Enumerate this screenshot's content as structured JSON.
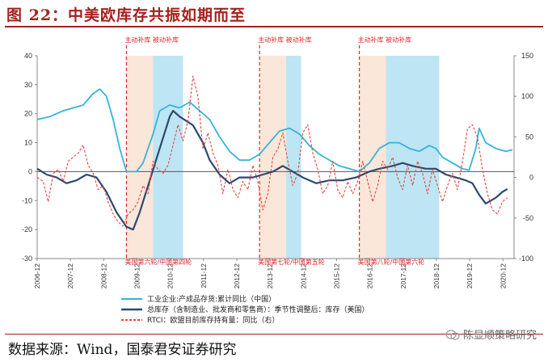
{
  "title": "图 22：中美欧库存共振如期而至",
  "source": "数据来源：Wind，国泰君安证券研究",
  "watermark": "陈显顺策略研究",
  "chart_data": {
    "type": "line",
    "title": "图 22：中美欧库存共振如期而至",
    "y_left": {
      "range": [
        -30,
        40
      ],
      "ticks": [
        40,
        30,
        20,
        10,
        0,
        -10,
        -20,
        -30
      ]
    },
    "y_right": {
      "range": [
        -100,
        150
      ],
      "ticks": [
        150,
        100,
        50,
        0,
        -50,
        -100
      ]
    },
    "x_range": [
      2006.917,
      2021.25
    ],
    "x_tick_labels": [
      "2006-12",
      "2007-12",
      "2008-12",
      "2009-12",
      "2010-12",
      "2011-12",
      "2012-12",
      "2013-12",
      "2014-12",
      "2015-12",
      "2016-12",
      "2017-12",
      "2018-12",
      "2019-12",
      "2020-12"
    ],
    "phase_top_labels": [
      "主动补库 被动补库",
      "主动补库 被动补库",
      "主动补库 被动补库"
    ],
    "phase_bottom_labels": [
      "美国第六轮/中国第四轮",
      "美国第七轮/中国第五轮",
      "美国第八轮/中国第六轮"
    ],
    "phases": [
      {
        "start": 2009.6,
        "active_end": 2010.4,
        "passive_end": 2011.3
      },
      {
        "start": 2013.6,
        "active_end": 2014.4,
        "passive_end": 2014.85
      },
      {
        "start": 2016.6,
        "active_end": 2017.4,
        "passive_end": 2019.0
      }
    ],
    "colors": {
      "china": "#34b4d8",
      "us": "#2c4a6e",
      "eu": "#e8453c",
      "active": "#fbe6da",
      "passive": "#bde5f4",
      "divider": "#e0262a"
    },
    "series": [
      {
        "name": "工业企业:产成品存货:累计同比（中国）",
        "axis": "left",
        "style": "solid",
        "points": [
          [
            2006.92,
            18
          ],
          [
            2007.3,
            19
          ],
          [
            2007.7,
            21
          ],
          [
            2008.0,
            22
          ],
          [
            2008.3,
            23
          ],
          [
            2008.6,
            27
          ],
          [
            2008.8,
            28.5
          ],
          [
            2009.0,
            26
          ],
          [
            2009.2,
            18
          ],
          [
            2009.4,
            8
          ],
          [
            2009.6,
            0
          ],
          [
            2009.9,
            0
          ],
          [
            2010.1,
            3
          ],
          [
            2010.4,
            13
          ],
          [
            2010.6,
            21
          ],
          [
            2010.9,
            23
          ],
          [
            2011.2,
            22
          ],
          [
            2011.5,
            24
          ],
          [
            2011.8,
            21
          ],
          [
            2012.1,
            18
          ],
          [
            2012.4,
            12
          ],
          [
            2012.7,
            7
          ],
          [
            2013.0,
            4
          ],
          [
            2013.3,
            4
          ],
          [
            2013.6,
            6
          ],
          [
            2013.9,
            10
          ],
          [
            2014.2,
            14
          ],
          [
            2014.5,
            15
          ],
          [
            2014.8,
            13
          ],
          [
            2015.1,
            9
          ],
          [
            2015.4,
            6
          ],
          [
            2015.7,
            4
          ],
          [
            2016.0,
            2
          ],
          [
            2016.3,
            1
          ],
          [
            2016.6,
            0
          ],
          [
            2016.9,
            3
          ],
          [
            2017.2,
            8
          ],
          [
            2017.5,
            10
          ],
          [
            2017.8,
            10
          ],
          [
            2018.1,
            8
          ],
          [
            2018.4,
            7
          ],
          [
            2018.7,
            9
          ],
          [
            2018.9,
            8
          ],
          [
            2019.1,
            5
          ],
          [
            2019.4,
            3
          ],
          [
            2019.7,
            1
          ],
          [
            2019.9,
            0.5
          ],
          [
            2020.1,
            8
          ],
          [
            2020.2,
            15
          ],
          [
            2020.4,
            10
          ],
          [
            2020.7,
            8
          ],
          [
            2021.0,
            7
          ],
          [
            2021.2,
            7.5
          ]
        ]
      },
      {
        "name": "总库存（含制造业、批发商和零售商）：季节性调整后：库存（美国）",
        "axis": "left",
        "style": "solid",
        "points": [
          [
            2006.92,
            1
          ],
          [
            2007.2,
            -1
          ],
          [
            2007.5,
            -2
          ],
          [
            2007.8,
            -4
          ],
          [
            2008.1,
            -3
          ],
          [
            2008.4,
            -1
          ],
          [
            2008.7,
            -2
          ],
          [
            2009.0,
            -7
          ],
          [
            2009.3,
            -14
          ],
          [
            2009.6,
            -19
          ],
          [
            2009.8,
            -20
          ],
          [
            2010.0,
            -14
          ],
          [
            2010.3,
            -3
          ],
          [
            2010.6,
            8
          ],
          [
            2010.9,
            19
          ],
          [
            2011.0,
            21
          ],
          [
            2011.2,
            19
          ],
          [
            2011.6,
            16
          ],
          [
            2011.9,
            10
          ],
          [
            2012.1,
            4
          ],
          [
            2012.4,
            -1
          ],
          [
            2012.7,
            -4
          ],
          [
            2013.0,
            -2
          ],
          [
            2013.4,
            -2
          ],
          [
            2013.7,
            -1
          ],
          [
            2014.0,
            0
          ],
          [
            2014.3,
            2
          ],
          [
            2014.6,
            0
          ],
          [
            2014.9,
            -2
          ],
          [
            2015.3,
            -4
          ],
          [
            2015.7,
            -3
          ],
          [
            2016.1,
            -3
          ],
          [
            2016.5,
            -2
          ],
          [
            2016.9,
            0
          ],
          [
            2017.2,
            1
          ],
          [
            2017.6,
            2
          ],
          [
            2017.9,
            3
          ],
          [
            2018.2,
            2
          ],
          [
            2018.6,
            1
          ],
          [
            2018.9,
            1
          ],
          [
            2019.2,
            -1
          ],
          [
            2019.5,
            -2
          ],
          [
            2019.8,
            -3
          ],
          [
            2020.0,
            -4
          ],
          [
            2020.2,
            -8
          ],
          [
            2020.4,
            -11
          ],
          [
            2020.7,
            -9
          ],
          [
            2020.9,
            -7
          ],
          [
            2021.05,
            -6
          ]
        ]
      },
      {
        "name": "RTCI：欧盟目前库存持有量：同比（右）",
        "axis": "right",
        "style": "dashed",
        "points": [
          [
            2006.92,
            0
          ],
          [
            2007.1,
            -5
          ],
          [
            2007.25,
            -30
          ],
          [
            2007.4,
            5
          ],
          [
            2007.55,
            10
          ],
          [
            2007.7,
            -5
          ],
          [
            2007.85,
            20
          ],
          [
            2008.0,
            25
          ],
          [
            2008.15,
            30
          ],
          [
            2008.3,
            40
          ],
          [
            2008.45,
            15
          ],
          [
            2008.6,
            5
          ],
          [
            2008.75,
            -15
          ],
          [
            2008.9,
            -10
          ],
          [
            2009.05,
            -30
          ],
          [
            2009.2,
            -45
          ],
          [
            2009.35,
            -55
          ],
          [
            2009.5,
            -60
          ],
          [
            2009.65,
            -45
          ],
          [
            2009.8,
            -40
          ],
          [
            2009.95,
            -30
          ],
          [
            2010.1,
            -10
          ],
          [
            2010.25,
            -20
          ],
          [
            2010.4,
            20
          ],
          [
            2010.55,
            10
          ],
          [
            2010.7,
            5
          ],
          [
            2010.85,
            15
          ],
          [
            2011.0,
            40
          ],
          [
            2011.15,
            65
          ],
          [
            2011.3,
            45
          ],
          [
            2011.45,
            70
          ],
          [
            2011.6,
            125
          ],
          [
            2011.75,
            100
          ],
          [
            2011.9,
            35
          ],
          [
            2012.05,
            55
          ],
          [
            2012.2,
            30
          ],
          [
            2012.35,
            15
          ],
          [
            2012.5,
            -20
          ],
          [
            2012.65,
            10
          ],
          [
            2012.8,
            -15
          ],
          [
            2012.95,
            -25
          ],
          [
            2013.1,
            -5
          ],
          [
            2013.25,
            -15
          ],
          [
            2013.4,
            15
          ],
          [
            2013.55,
            -5
          ],
          [
            2013.7,
            -40
          ],
          [
            2013.85,
            -20
          ],
          [
            2014.0,
            25
          ],
          [
            2014.15,
            35
          ],
          [
            2014.3,
            55
          ],
          [
            2014.45,
            20
          ],
          [
            2014.6,
            -10
          ],
          [
            2014.75,
            5
          ],
          [
            2014.9,
            55
          ],
          [
            2015.05,
            65
          ],
          [
            2015.2,
            30
          ],
          [
            2015.35,
            10
          ],
          [
            2015.5,
            -20
          ],
          [
            2015.65,
            -10
          ],
          [
            2015.8,
            20
          ],
          [
            2015.95,
            -15
          ],
          [
            2016.1,
            -25
          ],
          [
            2016.25,
            -5
          ],
          [
            2016.4,
            -20
          ],
          [
            2016.55,
            -5
          ],
          [
            2016.7,
            20
          ],
          [
            2016.85,
            -5
          ],
          [
            2017.0,
            -30
          ],
          [
            2017.15,
            -10
          ],
          [
            2017.3,
            20
          ],
          [
            2017.45,
            10
          ],
          [
            2017.6,
            25
          ],
          [
            2017.75,
            0
          ],
          [
            2017.9,
            -15
          ],
          [
            2018.05,
            15
          ],
          [
            2018.2,
            -10
          ],
          [
            2018.35,
            20
          ],
          [
            2018.5,
            5
          ],
          [
            2018.65,
            -20
          ],
          [
            2018.8,
            10
          ],
          [
            2018.95,
            -10
          ],
          [
            2019.1,
            -30
          ],
          [
            2019.25,
            -10
          ],
          [
            2019.4,
            5
          ],
          [
            2019.55,
            -15
          ],
          [
            2019.7,
            20
          ],
          [
            2019.85,
            60
          ],
          [
            2020.0,
            65
          ],
          [
            2020.15,
            50
          ],
          [
            2020.3,
            10
          ],
          [
            2020.45,
            -20
          ],
          [
            2020.6,
            -40
          ],
          [
            2020.75,
            -45
          ],
          [
            2020.9,
            -30
          ],
          [
            2021.05,
            -25
          ]
        ]
      }
    ]
  }
}
